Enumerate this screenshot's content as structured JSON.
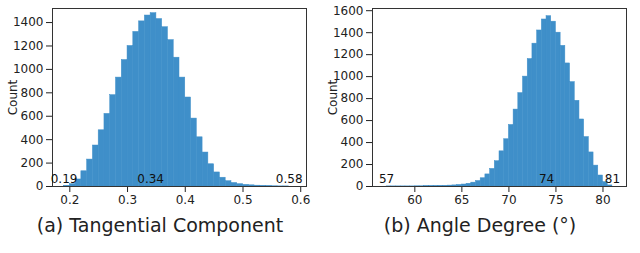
{
  "chart_data": [
    {
      "type": "histogram",
      "title": "(a) Tangential Component",
      "y_label": "Count",
      "color": "#3f8fc9",
      "bins": [
        0.19,
        0.2,
        0.21,
        0.22,
        0.23,
        0.24,
        0.25,
        0.26,
        0.27,
        0.28,
        0.29,
        0.3,
        0.31,
        0.32,
        0.33,
        0.34,
        0.35,
        0.36,
        0.37,
        0.38,
        0.39,
        0.4,
        0.41,
        0.42,
        0.43,
        0.44,
        0.45,
        0.46,
        0.47,
        0.48,
        0.49,
        0.5,
        0.51,
        0.52,
        0.53,
        0.54,
        0.55,
        0.56,
        0.57,
        0.58
      ],
      "counts": [
        5,
        20,
        60,
        130,
        230,
        350,
        480,
        620,
        780,
        930,
        1080,
        1200,
        1320,
        1410,
        1460,
        1480,
        1430,
        1360,
        1250,
        1100,
        930,
        760,
        580,
        420,
        290,
        190,
        120,
        75,
        45,
        30,
        20,
        14,
        10,
        7,
        5,
        3,
        2,
        1,
        1
      ],
      "xlim": [
        0.17,
        0.61
      ],
      "xticks": [
        0.2,
        0.3,
        0.4,
        0.5,
        0.6
      ],
      "ylim": [
        0,
        1520
      ],
      "yticks": [
        0,
        200,
        400,
        600,
        800,
        1000,
        1200,
        1400
      ],
      "annotations": [
        {
          "x": 0.19,
          "text": "0.19"
        },
        {
          "x": 0.34,
          "text": "0.34"
        },
        {
          "x": 0.58,
          "text": "0.58"
        }
      ]
    },
    {
      "type": "histogram",
      "title": "(b) Angle Degree (°)",
      "y_label": "Count",
      "color": "#3f8fc9",
      "bins": [
        57,
        57.5,
        58,
        58.5,
        59,
        59.5,
        60,
        60.5,
        61,
        61.5,
        62,
        62.5,
        63,
        63.5,
        64,
        64.5,
        65,
        65.5,
        66,
        66.5,
        67,
        67.5,
        68,
        68.5,
        69,
        69.5,
        70,
        70.5,
        71,
        71.5,
        72,
        72.5,
        73,
        73.5,
        74,
        74.5,
        75,
        75.5,
        76,
        76.5,
        77,
        77.5,
        78,
        78.5,
        79,
        79.5,
        80,
        80.5,
        81
      ],
      "counts": [
        1,
        1,
        1,
        1,
        1,
        1,
        2,
        2,
        3,
        3,
        4,
        5,
        6,
        8,
        10,
        14,
        18,
        25,
        35,
        50,
        75,
        110,
        160,
        230,
        320,
        430,
        560,
        700,
        850,
        1000,
        1160,
        1300,
        1420,
        1520,
        1550,
        1500,
        1400,
        1280,
        1120,
        950,
        780,
        610,
        450,
        310,
        190,
        100,
        40,
        10
      ],
      "xlim": [
        55.5,
        82.5
      ],
      "xticks": [
        60,
        65,
        70,
        75,
        80
      ],
      "ylim": [
        0,
        1620
      ],
      "yticks": [
        0,
        200,
        400,
        600,
        800,
        1000,
        1200,
        1400,
        1600
      ],
      "annotations": [
        {
          "x": 57,
          "text": "57"
        },
        {
          "x": 74,
          "text": "74"
        },
        {
          "x": 81,
          "text": "81"
        }
      ]
    }
  ]
}
